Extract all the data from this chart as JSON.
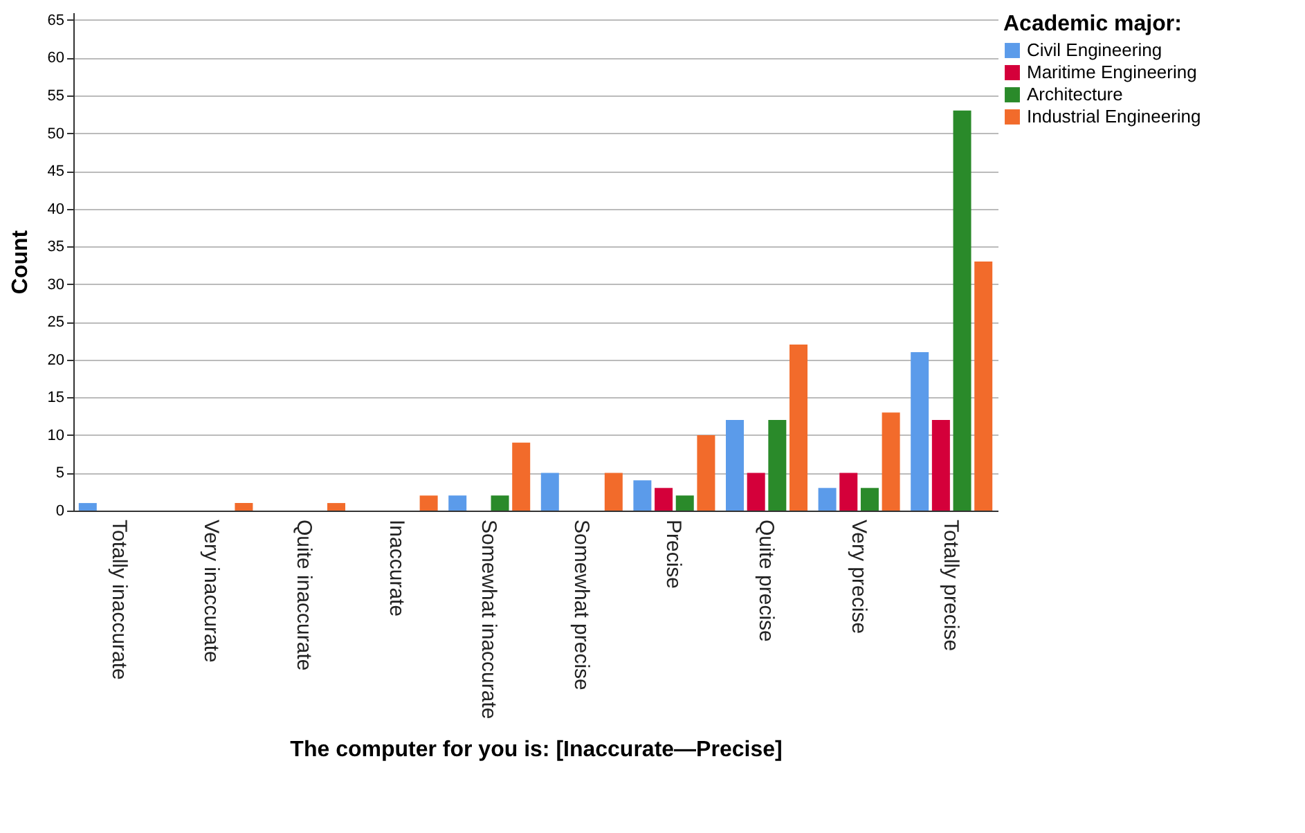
{
  "chart_data": {
    "type": "bar",
    "xlabel": "The computer for you is: [Inaccurate—Precise]",
    "ylabel": "Count",
    "legend_title": "Academic major:",
    "categories": [
      "Totally inaccurate",
      "Very inaccurate",
      "Quite inaccurate",
      "Inaccurate",
      "Somewhat inaccurate",
      "Somewhat precise",
      "Precise",
      "Quite precise",
      "Very precise",
      "Totally precise"
    ],
    "series": [
      {
        "name": "Civil Engineering",
        "color": "#5b9bea",
        "values": [
          1,
          0,
          0,
          0,
          2,
          5,
          4,
          12,
          3,
          21
        ]
      },
      {
        "name": "Maritime Engineering",
        "color": "#d4003a",
        "values": [
          0,
          0,
          0,
          0,
          0,
          0,
          3,
          5,
          5,
          12
        ]
      },
      {
        "name": "Architecture",
        "color": "#2a8a2a",
        "values": [
          0,
          0,
          0,
          0,
          2,
          0,
          2,
          12,
          3,
          53
        ]
      },
      {
        "name": "Industrial Engineering",
        "color": "#f26b2b",
        "values": [
          0,
          1,
          1,
          2,
          9,
          5,
          10,
          22,
          13,
          33
        ]
      }
    ],
    "ylim": [
      0,
      66
    ],
    "yticks": [
      0,
      5,
      10,
      15,
      20,
      25,
      30,
      35,
      40,
      45,
      50,
      55,
      60,
      65
    ],
    "grid": "y",
    "legend": "top right"
  }
}
